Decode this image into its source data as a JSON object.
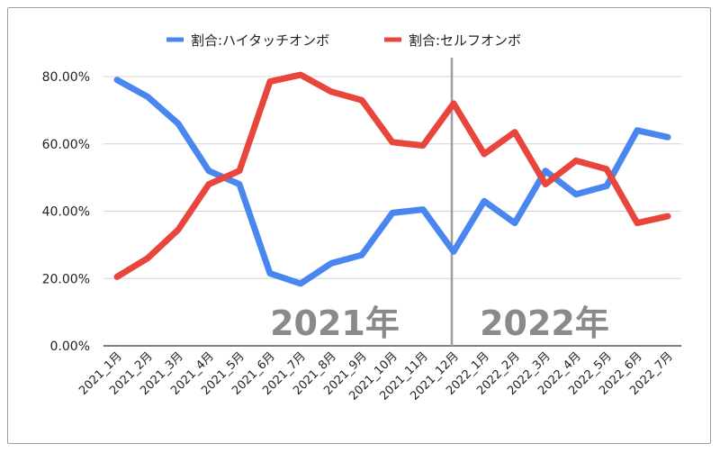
{
  "chart_data": {
    "type": "line",
    "categories": [
      "2021_1月",
      "2021_2月",
      "2021_3月",
      "2021_4月",
      "2021_5月",
      "2021_6月",
      "2021_7月",
      "2021_8月",
      "2021_9月",
      "2021_10月",
      "2021_11月",
      "2021_12月",
      "2022_1月",
      "2022_2月",
      "2022_3月",
      "2022_4月",
      "2022_5月",
      "2022_6月",
      "2022_7月"
    ],
    "series": [
      {
        "name": "割合:ハイタッチオンボ",
        "color": "#4a86f0",
        "values": [
          79.0,
          74.0,
          66.0,
          52.0,
          48.0,
          21.5,
          18.5,
          24.5,
          27.0,
          39.5,
          40.5,
          28.0,
          43.0,
          36.5,
          52.0,
          45.0,
          47.5,
          64.0,
          62.0
        ]
      },
      {
        "name": "割合:セルフオンボ",
        "color": "#e8453c",
        "values": [
          20.5,
          26.0,
          34.5,
          48.0,
          52.0,
          78.5,
          80.5,
          75.5,
          73.0,
          60.5,
          59.5,
          72.0,
          57.0,
          63.5,
          48.0,
          55.0,
          52.5,
          36.5,
          38.5
        ]
      }
    ],
    "ylim": [
      0,
      80
    ],
    "yticks": [
      "0.00%",
      "20.00%",
      "40.00%",
      "60.00%",
      "80.00%"
    ],
    "ytick_values": [
      0,
      20,
      40,
      60,
      80
    ],
    "legend_position": "top-center",
    "grid": true,
    "divider_after_category": "2021_12月",
    "annotations": [
      "2021年",
      "2022年"
    ]
  }
}
